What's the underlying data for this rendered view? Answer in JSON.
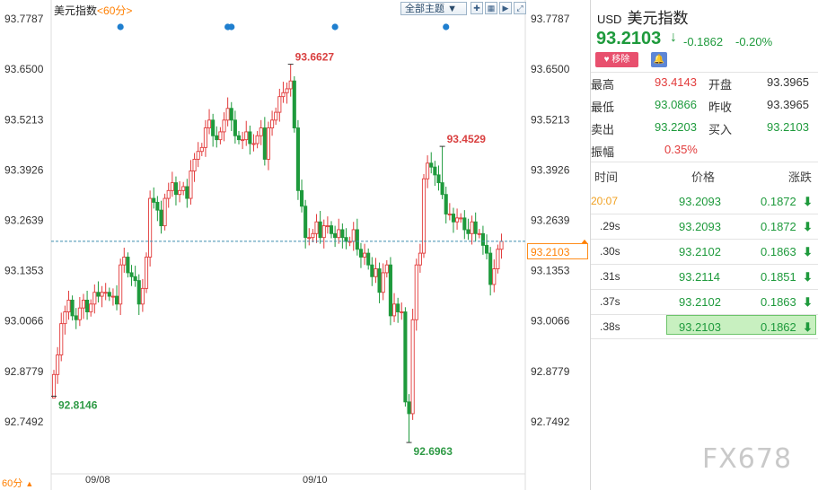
{
  "chart_title": "美元指数",
  "timeframe": "60分",
  "theme_button": "全部主题",
  "toolbar_icons": [
    "crosshair-icon",
    "grid-icon",
    "play-icon",
    "expand-icon"
  ],
  "bottom_timeframe": "60分",
  "current_price_box": "93.2103",
  "watermark": "FX678",
  "colors": {
    "up": "#e23b3b",
    "down": "#1e9a3c",
    "dash": "#3d8fb0",
    "marker": "#1f7fcf",
    "accent": "#ff7f00"
  },
  "panel": {
    "currency": "USD",
    "name": "美元指数",
    "price": "93.2103",
    "change": "-0.1862",
    "change_pct": "-0.20%",
    "remove_label": "移除",
    "stats": [
      {
        "l1": "最高",
        "v1": "93.4143",
        "l2": "开盘",
        "v2": "93.3965"
      },
      {
        "l1": "最低",
        "v1": "93.0866",
        "l2": "昨收",
        "v2": "93.3965"
      },
      {
        "l1": "卖出",
        "v1": "93.2203",
        "l2": "买入",
        "v2": "93.2103"
      }
    ],
    "amplitude_label": "振幅",
    "amplitude": "0.35%",
    "tick_headers": {
      "time": "时间",
      "price": "价格",
      "change": "涨跌"
    },
    "ticks": [
      {
        "time": "20:07",
        "price": "93.2093",
        "change": "0.1872"
      },
      {
        "time": ".29s",
        "price": "93.2093",
        "change": "0.1872"
      },
      {
        "time": ".30s",
        "price": "93.2102",
        "change": "0.1863"
      },
      {
        "time": ".31s",
        "price": "93.2114",
        "change": "0.1851"
      },
      {
        "time": ".37s",
        "price": "93.2102",
        "change": "0.1863"
      },
      {
        "time": ".38s",
        "price": "93.2103",
        "change": "0.1862"
      }
    ]
  },
  "chart_data": {
    "type": "candlestick",
    "title": "美元指数",
    "y_ticks": [
      93.7787,
      93.65,
      93.5213,
      93.3926,
      93.2639,
      93.1353,
      93.0066,
      92.8779,
      92.7492
    ],
    "x_labels": [
      {
        "label": "09/08",
        "index": 12
      },
      {
        "label": "09/10",
        "index": 73
      }
    ],
    "current_price": 93.2103,
    "annotations": [
      {
        "label": "93.6627",
        "value": 93.6627,
        "index": 64,
        "type": "high"
      },
      {
        "label": "93.4529",
        "value": 93.4529,
        "index": 105,
        "type": "high"
      },
      {
        "label": "92.8146",
        "value": 92.8146,
        "index": 0,
        "type": "low"
      },
      {
        "label": "92.6963",
        "value": 92.6963,
        "index": 96,
        "type": "low"
      }
    ],
    "event_markers": [
      18,
      47,
      48,
      76,
      106
    ],
    "closes": [
      92.87,
      92.92,
      93.0,
      93.03,
      93.06,
      93.02,
      93.01,
      93.04,
      93.06,
      93.03,
      93.05,
      93.08,
      93.07,
      93.08,
      93.08,
      93.07,
      93.07,
      93.05,
      93.15,
      93.17,
      93.13,
      93.12,
      93.11,
      93.05,
      93.09,
      93.17,
      93.32,
      93.31,
      93.29,
      93.25,
      93.32,
      93.34,
      93.36,
      93.33,
      93.34,
      93.35,
      93.32,
      93.39,
      93.42,
      93.44,
      93.45,
      93.5,
      93.52,
      93.48,
      93.47,
      93.49,
      93.52,
      93.55,
      93.52,
      93.48,
      93.47,
      93.47,
      93.49,
      93.46,
      93.46,
      93.48,
      93.5,
      93.42,
      93.5,
      93.52,
      93.54,
      93.58,
      93.59,
      93.6,
      93.62,
      93.5,
      93.34,
      93.3,
      93.22,
      93.22,
      93.23,
      93.26,
      93.22,
      93.25,
      93.25,
      93.23,
      93.22,
      93.24,
      93.22,
      93.21,
      93.21,
      93.24,
      93.19,
      93.17,
      93.18,
      93.15,
      93.12,
      93.14,
      93.08,
      93.13,
      93.15,
      93.02,
      93.05,
      93.03,
      93.03,
      92.8,
      92.77,
      93.01,
      93.15,
      93.18,
      93.37,
      93.41,
      93.4,
      93.38,
      93.36,
      93.33,
      93.28,
      93.28,
      93.26,
      93.27,
      93.27,
      93.24,
      93.23,
      93.26,
      93.23,
      93.23,
      93.2,
      93.18,
      93.1,
      93.14,
      93.19,
      93.21
    ]
  }
}
